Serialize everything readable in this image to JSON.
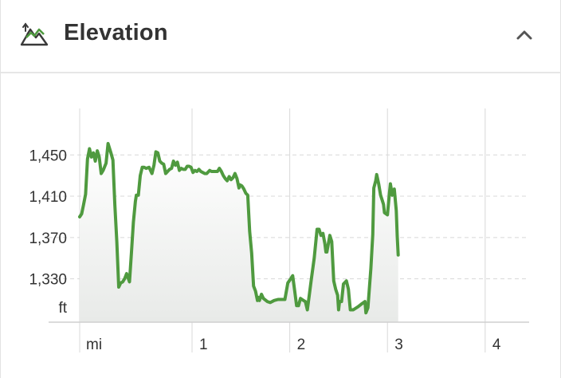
{
  "header": {
    "title": "Elevation",
    "icon": "mountain-elevation-icon",
    "collapse_icon": "chevron-up-icon"
  },
  "colors": {
    "line": "#4f9a3f",
    "grid": "#d8d8d8",
    "axis": "#cfcfcf",
    "icon_green": "#4f9a3f",
    "text": "#333333"
  },
  "chart_data": {
    "type": "area",
    "title": "",
    "xlabel": "mi",
    "ylabel": "ft",
    "xlim": [
      -0.15,
      4.45
    ],
    "ylim": [
      1288,
      1495
    ],
    "y_ticks": [
      1330,
      1370,
      1410,
      1450
    ],
    "y_tick_labels": [
      "1,330",
      "1,370",
      "1,410",
      "1,450"
    ],
    "y_unit_label": "ft",
    "x_ticks": [
      1,
      2,
      3,
      4
    ],
    "x_tick_labels": [
      "1",
      "2",
      "3",
      "4"
    ],
    "x_unit_label": "mi",
    "grid": true,
    "series": [
      {
        "values": [
          [
            -0.15,
            1390
          ],
          [
            -0.13,
            1393
          ],
          [
            -0.11,
            1402
          ],
          [
            -0.09,
            1412
          ],
          [
            -0.07,
            1446
          ],
          [
            -0.05,
            1456
          ],
          [
            -0.03,
            1448
          ],
          [
            -0.01,
            1452
          ],
          [
            0.01,
            1444
          ],
          [
            0.03,
            1454
          ],
          [
            0.05,
            1448
          ],
          [
            0.07,
            1432
          ],
          [
            0.09,
            1435
          ],
          [
            0.12,
            1442
          ],
          [
            0.14,
            1461
          ],
          [
            0.17,
            1452
          ],
          [
            0.19,
            1445
          ],
          [
            0.21,
            1402
          ],
          [
            0.23,
            1366
          ],
          [
            0.25,
            1322
          ],
          [
            0.27,
            1326
          ],
          [
            0.29,
            1327
          ],
          [
            0.31,
            1330
          ],
          [
            0.33,
            1335
          ],
          [
            0.36,
            1327
          ],
          [
            0.38,
            1356
          ],
          [
            0.4,
            1385
          ],
          [
            0.42,
            1405
          ],
          [
            0.43,
            1411
          ],
          [
            0.45,
            1411
          ],
          [
            0.47,
            1430
          ],
          [
            0.49,
            1438
          ],
          [
            0.51,
            1438
          ],
          [
            0.53,
            1437
          ],
          [
            0.56,
            1438
          ],
          [
            0.59,
            1432
          ],
          [
            0.61,
            1440
          ],
          [
            0.63,
            1453
          ],
          [
            0.65,
            1452
          ],
          [
            0.67,
            1444
          ],
          [
            0.69,
            1442
          ],
          [
            0.71,
            1441
          ],
          [
            0.73,
            1432
          ],
          [
            0.75,
            1434
          ],
          [
            0.77,
            1436
          ],
          [
            0.79,
            1437
          ],
          [
            0.81,
            1444
          ],
          [
            0.83,
            1440
          ],
          [
            0.85,
            1443
          ],
          [
            0.87,
            1435
          ],
          [
            0.89,
            1437
          ],
          [
            0.91,
            1436
          ],
          [
            0.93,
            1436
          ],
          [
            0.95,
            1439
          ],
          [
            0.97,
            1439
          ],
          [
            0.99,
            1438
          ],
          [
            1.01,
            1433
          ],
          [
            1.03,
            1435
          ],
          [
            1.05,
            1434
          ],
          [
            1.07,
            1436
          ],
          [
            1.09,
            1434
          ],
          [
            1.11,
            1433
          ],
          [
            1.13,
            1432
          ],
          [
            1.15,
            1432
          ],
          [
            1.18,
            1435
          ],
          [
            1.2,
            1434
          ],
          [
            1.22,
            1434
          ],
          [
            1.24,
            1434
          ],
          [
            1.26,
            1434
          ],
          [
            1.28,
            1437
          ],
          [
            1.3,
            1434
          ],
          [
            1.32,
            1430
          ],
          [
            1.34,
            1427
          ],
          [
            1.36,
            1425
          ],
          [
            1.38,
            1429
          ],
          [
            1.4,
            1426
          ],
          [
            1.42,
            1428
          ],
          [
            1.44,
            1432
          ],
          [
            1.46,
            1427
          ],
          [
            1.48,
            1418
          ],
          [
            1.49,
            1421
          ],
          [
            1.51,
            1420
          ],
          [
            1.53,
            1417
          ],
          [
            1.55,
            1413
          ],
          [
            1.57,
            1411
          ],
          [
            1.59,
            1376
          ],
          [
            1.61,
            1355
          ],
          [
            1.63,
            1323
          ],
          [
            1.65,
            1318
          ],
          [
            1.67,
            1309
          ],
          [
            1.68,
            1312
          ],
          [
            1.69,
            1309
          ],
          [
            1.71,
            1315
          ],
          [
            1.73,
            1311
          ],
          [
            1.77,
            1308
          ],
          [
            1.8,
            1307
          ],
          [
            1.84,
            1309
          ],
          [
            1.88,
            1310
          ],
          [
            1.92,
            1310
          ],
          [
            1.95,
            1310
          ],
          [
            1.98,
            1326
          ],
          [
            2.01,
            1330
          ],
          [
            2.03,
            1333
          ],
          [
            2.05,
            1319
          ],
          [
            2.07,
            1304
          ],
          [
            2.09,
            1304
          ],
          [
            2.11,
            1311
          ],
          [
            2.14,
            1309
          ],
          [
            2.16,
            1308
          ],
          [
            2.18,
            1300
          ],
          [
            2.2,
            1314
          ],
          [
            2.22,
            1329
          ],
          [
            2.25,
            1350
          ],
          [
            2.28,
            1378
          ],
          [
            2.3,
            1378
          ],
          [
            2.32,
            1372
          ],
          [
            2.34,
            1374
          ],
          [
            2.36,
            1364
          ],
          [
            2.37,
            1356
          ],
          [
            2.38,
            1356
          ],
          [
            2.41,
            1372
          ],
          [
            2.43,
            1366
          ],
          [
            2.45,
            1328
          ],
          [
            2.47,
            1320
          ],
          [
            2.49,
            1314
          ],
          [
            2.5,
            1300
          ],
          [
            2.51,
            1308
          ],
          [
            2.53,
            1308
          ],
          [
            2.55,
            1325
          ],
          [
            2.58,
            1328
          ],
          [
            2.6,
            1320
          ],
          [
            2.62,
            1300
          ],
          [
            2.65,
            1300
          ],
          [
            2.7,
            1303
          ],
          [
            2.74,
            1306
          ],
          [
            2.77,
            1308
          ],
          [
            2.78,
            1297
          ],
          [
            2.8,
            1302
          ],
          [
            2.83,
            1340
          ],
          [
            2.85,
            1373
          ],
          [
            2.86,
            1418
          ],
          [
            2.88,
            1425
          ],
          [
            2.89,
            1431
          ],
          [
            2.91,
            1422
          ],
          [
            2.93,
            1411
          ],
          [
            2.95,
            1405
          ],
          [
            2.96,
            1402
          ],
          [
            2.97,
            1394
          ],
          [
            3.0,
            1392
          ],
          [
            3.02,
            1413
          ],
          [
            3.03,
            1422
          ],
          [
            3.05,
            1411
          ],
          [
            3.07,
            1417
          ],
          [
            3.09,
            1396
          ],
          [
            3.1,
            1371
          ],
          [
            3.11,
            1353
          ]
        ]
      }
    ]
  }
}
